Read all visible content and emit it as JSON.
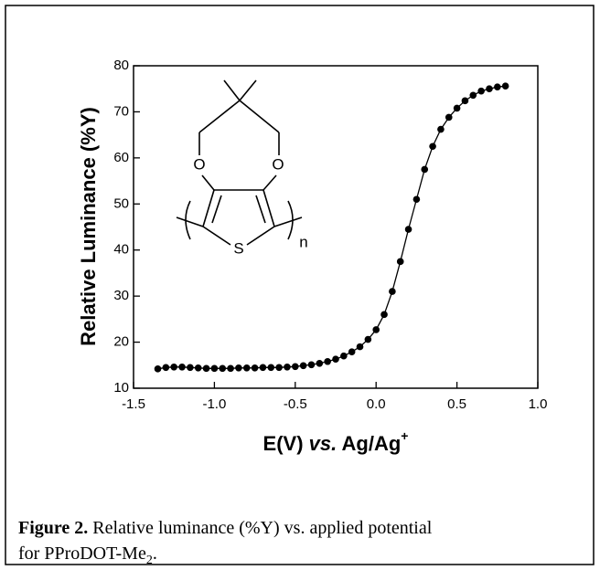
{
  "chart_data": {
    "type": "scatter",
    "x_label": {
      "main": "E(V)",
      "italic": "vs.",
      "tail": "Ag/Ag",
      "superscript": "+"
    },
    "y_label": "Relative Luminance (%Y)",
    "xlim": [
      -1.5,
      1.0
    ],
    "ylim": [
      10,
      80
    ],
    "xticks": [
      {
        "value": -1.5,
        "label": "-1.5"
      },
      {
        "value": -1.0,
        "label": "-1.0"
      },
      -0.5,
      {
        "value": 0.0,
        "label": "0.0"
      },
      0.5,
      {
        "value": 1.0,
        "label": "1.0"
      }
    ],
    "yticks": [
      10,
      20,
      30,
      40,
      50,
      60,
      70,
      80
    ],
    "series": [
      {
        "color": "#000000",
        "x": [
          -1.35,
          -1.3,
          -1.25,
          -1.2,
          -1.15,
          -1.1,
          -1.05,
          -1.0,
          -0.95,
          -0.9,
          -0.85,
          -0.8,
          -0.75,
          -0.7,
          -0.65,
          -0.6,
          -0.55,
          -0.5,
          -0.45,
          -0.4,
          -0.35,
          -0.3,
          -0.25,
          -0.2,
          -0.15,
          -0.1,
          -0.05,
          0.0,
          0.05,
          0.1,
          0.15,
          0.2,
          0.25,
          0.3,
          0.35,
          0.4,
          0.45,
          0.5,
          0.55,
          0.6,
          0.65,
          0.7,
          0.75,
          0.8
        ],
        "values": [
          14.2,
          14.5,
          14.6,
          14.6,
          14.5,
          14.4,
          14.3,
          14.3,
          14.3,
          14.3,
          14.4,
          14.4,
          14.4,
          14.5,
          14.5,
          14.5,
          14.6,
          14.7,
          14.9,
          15.1,
          15.4,
          15.8,
          16.3,
          17.0,
          17.9,
          19.0,
          20.6,
          22.7,
          26.0,
          31.0,
          37.5,
          44.5,
          51.0,
          57.5,
          62.5,
          66.2,
          68.8,
          70.8,
          72.4,
          73.6,
          74.5,
          75.0,
          75.4,
          75.6
        ]
      }
    ],
    "structure": {
      "atoms": [
        "O",
        "O",
        "S"
      ],
      "subscript": "n"
    },
    "caption": {
      "label": "Figure 2.",
      "text": "Relative luminance (%Y) vs. applied potential for PProDOT-Me",
      "subscript": "2",
      "end": "."
    }
  }
}
